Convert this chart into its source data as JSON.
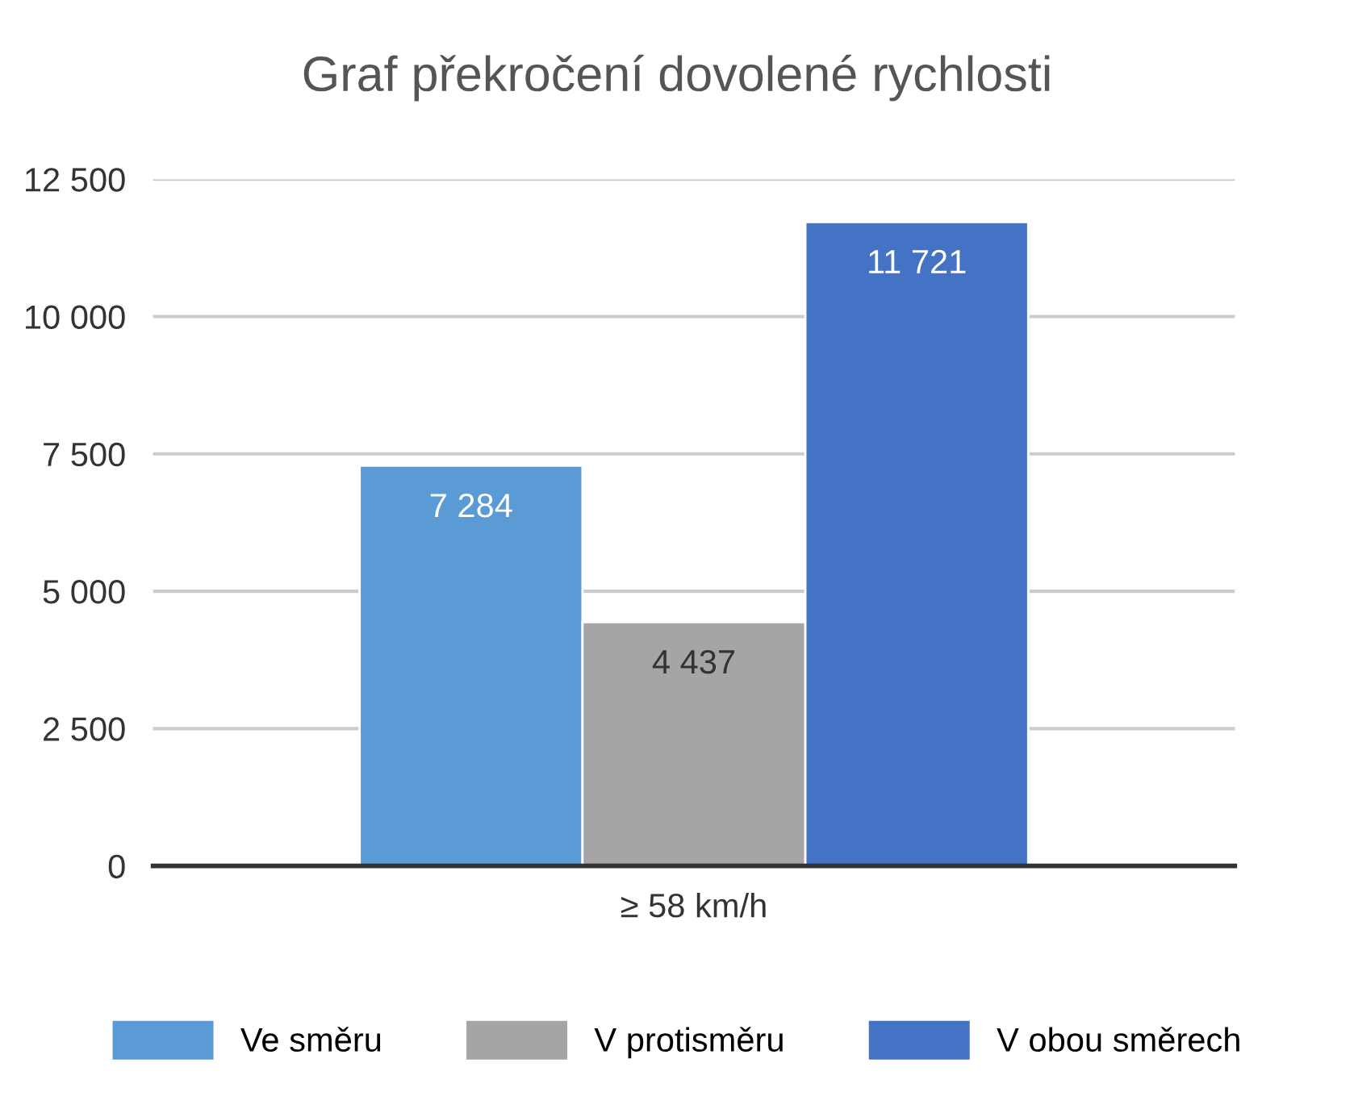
{
  "chart_data": {
    "type": "bar",
    "title": "Graf překročení dovolené rychlosti",
    "categories": [
      "≥ 58 km/h"
    ],
    "series": [
      {
        "name": "Ve směru",
        "color": "#5b9bd5",
        "values": [
          7284
        ],
        "value_labels": [
          "7 284"
        ]
      },
      {
        "name": "V protisměru",
        "color": "#a5a5a5",
        "values": [
          4437
        ],
        "value_labels": [
          "4 437"
        ]
      },
      {
        "name": "V obou směrech",
        "color": "#4472c4",
        "values": [
          11721
        ],
        "value_labels": [
          "11 721"
        ]
      }
    ],
    "ylim": [
      0,
      12500
    ],
    "yticks": [
      0,
      {
        "value": 2500,
        "label": "2 500"
      },
      {
        "value": 5000,
        "label": "5 000"
      },
      {
        "value": 7500,
        "label": "7 500"
      },
      {
        "value": 10000,
        "label": "10 000"
      },
      {
        "value": 12500,
        "label": "12 500"
      }
    ],
    "grid": "y",
    "legend": "bottom"
  }
}
